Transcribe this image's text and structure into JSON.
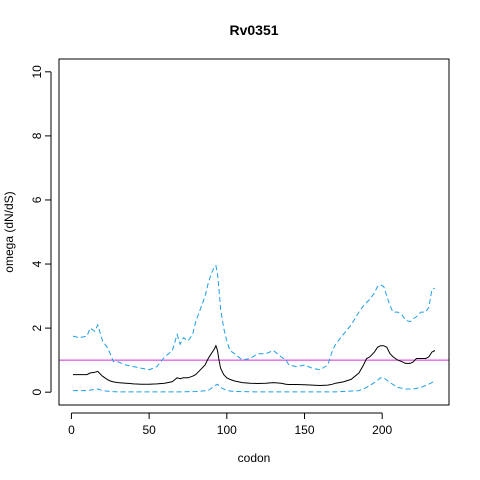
{
  "chart_data": {
    "type": "line",
    "title": "Rv0351",
    "xlabel": "codon",
    "ylabel": "omega (dN/dS)",
    "xlim": [
      -8,
      243
    ],
    "ylim": [
      -0.4,
      10.4
    ],
    "xticks": [
      0,
      50,
      100,
      150,
      200
    ],
    "yticks": [
      0,
      2,
      4,
      6,
      8,
      10
    ],
    "grid": false,
    "colors": {
      "estimate": "#000000",
      "interval": "#1e9fe6",
      "reference": "#d52fd5"
    },
    "reference_line": {
      "y": 1
    },
    "series": [
      {
        "role": "upper",
        "style": "dashed",
        "x": [
          1,
          5,
          10,
          12,
          15,
          17,
          20,
          23,
          25,
          27,
          30,
          35,
          40,
          45,
          50,
          55,
          60,
          65,
          68,
          70,
          72,
          75,
          78,
          80,
          83,
          86,
          88,
          90,
          92,
          93,
          94,
          95,
          96,
          98,
          100,
          102,
          105,
          110,
          115,
          120,
          125,
          130,
          135,
          138,
          140,
          145,
          150,
          155,
          160,
          165,
          168,
          170,
          175,
          180,
          185,
          188,
          190,
          192,
          195,
          197,
          199,
          201,
          203,
          205,
          207,
          210,
          213,
          215,
          218,
          220,
          222,
          225,
          228,
          230,
          232,
          234
        ],
        "y": [
          1.75,
          1.7,
          1.75,
          2.0,
          1.9,
          2.1,
          1.6,
          1.4,
          1.2,
          0.95,
          0.95,
          0.85,
          0.8,
          0.75,
          0.7,
          0.8,
          1.1,
          1.3,
          1.8,
          1.5,
          1.7,
          1.6,
          1.8,
          2.2,
          2.6,
          3.0,
          3.4,
          3.7,
          3.9,
          3.95,
          3.7,
          3.2,
          2.6,
          2.0,
          1.6,
          1.3,
          1.2,
          1.0,
          1.05,
          1.2,
          1.2,
          1.3,
          1.1,
          1.0,
          0.85,
          0.8,
          0.85,
          0.75,
          0.7,
          0.85,
          1.3,
          1.5,
          1.8,
          2.1,
          2.5,
          2.7,
          2.8,
          2.9,
          3.1,
          3.3,
          3.35,
          3.3,
          3.0,
          2.7,
          2.5,
          2.5,
          2.4,
          2.25,
          2.2,
          2.3,
          2.35,
          2.5,
          2.5,
          2.65,
          3.2,
          3.25
        ]
      },
      {
        "role": "estimate",
        "style": "solid",
        "x": [
          1,
          5,
          10,
          12,
          15,
          17,
          20,
          23,
          25,
          27,
          30,
          35,
          40,
          45,
          50,
          55,
          60,
          65,
          68,
          70,
          72,
          75,
          78,
          80,
          83,
          86,
          88,
          90,
          92,
          93,
          94,
          95,
          96,
          98,
          100,
          102,
          105,
          110,
          115,
          120,
          125,
          130,
          135,
          138,
          140,
          145,
          150,
          155,
          160,
          165,
          168,
          170,
          175,
          180,
          185,
          188,
          190,
          192,
          195,
          197,
          199,
          201,
          203,
          205,
          207,
          210,
          213,
          215,
          218,
          220,
          222,
          225,
          228,
          230,
          232,
          234
        ],
        "y": [
          0.55,
          0.55,
          0.55,
          0.6,
          0.62,
          0.65,
          0.5,
          0.4,
          0.35,
          0.32,
          0.3,
          0.28,
          0.26,
          0.25,
          0.25,
          0.26,
          0.28,
          0.33,
          0.45,
          0.42,
          0.45,
          0.45,
          0.5,
          0.55,
          0.7,
          0.85,
          1.05,
          1.2,
          1.35,
          1.45,
          1.3,
          1.0,
          0.75,
          0.55,
          0.45,
          0.4,
          0.35,
          0.3,
          0.28,
          0.27,
          0.28,
          0.3,
          0.28,
          0.25,
          0.24,
          0.24,
          0.23,
          0.22,
          0.21,
          0.22,
          0.25,
          0.28,
          0.32,
          0.4,
          0.6,
          0.85,
          1.05,
          1.1,
          1.25,
          1.4,
          1.45,
          1.45,
          1.4,
          1.2,
          1.1,
          1.0,
          0.95,
          0.9,
          0.9,
          0.95,
          1.05,
          1.05,
          1.05,
          1.1,
          1.25,
          1.3
        ]
      },
      {
        "role": "lower",
        "style": "dashed",
        "x": [
          1,
          10,
          17,
          20,
          25,
          30,
          50,
          70,
          80,
          88,
          92,
          94,
          96,
          100,
          105,
          120,
          150,
          170,
          185,
          190,
          195,
          199,
          201,
          205,
          210,
          215,
          220,
          225,
          230,
          234
        ],
        "y": [
          0.05,
          0.05,
          0.1,
          0.05,
          0.02,
          0.01,
          0.01,
          0.01,
          0.02,
          0.05,
          0.2,
          0.25,
          0.15,
          0.05,
          0.02,
          0.01,
          0.01,
          0.01,
          0.05,
          0.15,
          0.3,
          0.45,
          0.45,
          0.3,
          0.15,
          0.1,
          0.1,
          0.15,
          0.25,
          0.35
        ]
      }
    ]
  }
}
